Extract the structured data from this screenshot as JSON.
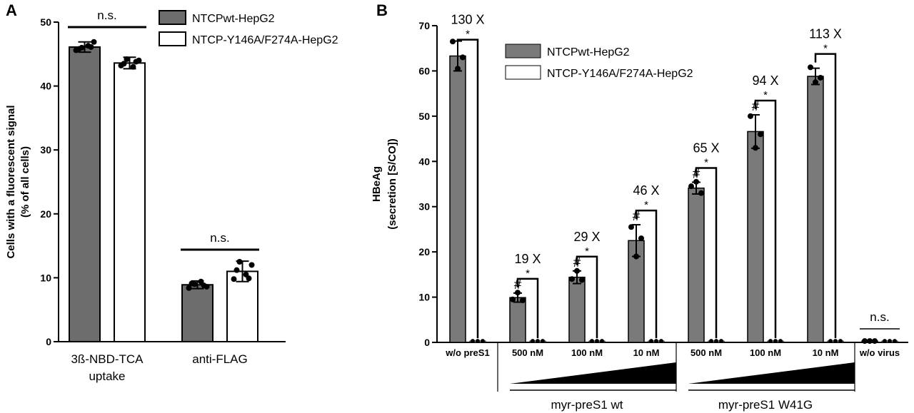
{
  "chart_data": [
    {
      "type": "bar",
      "panel_label": "A",
      "ylabel_line1": "Cells with a fluorescent signal",
      "ylabel_line2": "(% of all cells)",
      "ylim": [
        0,
        50
      ],
      "yticks": [
        0,
        10,
        20,
        30,
        40,
        50
      ],
      "categories": [
        [
          "3ß-NBD-TCA",
          "uptake"
        ],
        [
          "anti-FLAG"
        ]
      ],
      "legend": {
        "position": "top-right",
        "entries": [
          "NTCPwt-HepG2",
          "NTCP-Y146A/F274A-HepG2"
        ]
      },
      "series": [
        {
          "name": "NTCPwt-HepG2",
          "color": "#6d6d6d",
          "values": [
            46.1,
            8.9
          ],
          "errors": [
            0.8,
            0.6
          ],
          "points": [
            [
              45.6,
              46.0,
              46.3,
              46.9,
              45.8,
              46.1
            ],
            [
              8.4,
              9.0,
              9.4,
              8.6,
              9.1,
              8.8
            ]
          ]
        },
        {
          "name": "NTCP-Y146A/F274A-HepG2",
          "color": "#ffffff",
          "values": [
            43.6,
            11.0
          ],
          "errors": [
            0.9,
            1.6
          ],
          "points": [
            [
              43.2,
              44.2,
              43.0,
              44.0,
              43.5,
              43.8
            ],
            [
              9.8,
              12.5,
              10.5,
              12.0,
              11.2,
              9.9
            ]
          ]
        }
      ],
      "annotations": [
        "n.s.",
        "n.s."
      ]
    },
    {
      "type": "bar",
      "panel_label": "B",
      "ylabel_line1": "HBeAg",
      "ylabel_line2": "(secretion [S/CO])",
      "ylim": [
        0,
        70
      ],
      "yticks": [
        0,
        10,
        20,
        30,
        40,
        50,
        60,
        70
      ],
      "categories": [
        "w/o preS1",
        "500 nM",
        "100 nM",
        "10 nM",
        "500 nM",
        "100 nM",
        "10 nM",
        "w/o virus"
      ],
      "legend": {
        "position": "top-center",
        "entries": [
          "NTCPwt-HepG2",
          "NTCP-Y146A/F274A-HepG2"
        ]
      },
      "series": [
        {
          "name": "NTCPwt-HepG2",
          "color": "#7a7a7a",
          "values": [
            63.3,
            9.9,
            14.4,
            22.5,
            34.1,
            46.6,
            58.8,
            0.3
          ],
          "errors": [
            3.3,
            1.0,
            1.4,
            3.5,
            1.3,
            3.7,
            1.8,
            0.1
          ],
          "points": [
            [
              66.5,
              60.5,
              63.0
            ],
            [
              9.5,
              11.0,
              9.3
            ],
            [
              14.0,
              15.8,
              13.8
            ],
            [
              25.5,
              19.0,
              23.0
            ],
            [
              34.5,
              35.5,
              33.0
            ],
            [
              50.0,
              43.0,
              46.0
            ],
            [
              60.8,
              57.5,
              58.5
            ],
            [
              0.3,
              0.3,
              0.3
            ]
          ]
        },
        {
          "name": "NTCP-Y146A/F274A-HepG2",
          "color": "#ffffff",
          "values": [
            0.3,
            0.3,
            0.3,
            0.3,
            0.3,
            0.3,
            0.3,
            0.3
          ],
          "errors": [
            0,
            0,
            0,
            0,
            0,
            0,
            0,
            0
          ],
          "points": [
            [
              0.3,
              0.3,
              0.3
            ],
            [
              0.3,
              0.3,
              0.3
            ],
            [
              0.3,
              0.3,
              0.3
            ],
            [
              0.3,
              0.3,
              0.3
            ],
            [
              0.3,
              0.3,
              0.3
            ],
            [
              0.3,
              0.3,
              0.3
            ],
            [
              0.3,
              0.3,
              0.3
            ],
            [
              0.3,
              0.3,
              0.3
            ]
          ]
        }
      ],
      "fold_annotations": [
        "130 X",
        "19 X",
        "29 X",
        "46 X",
        "65 X",
        "94 X",
        "113 X",
        "n.s."
      ],
      "star_label": "*",
      "hash_label": "#",
      "hash_groups": [
        1,
        2,
        3,
        4,
        5
      ],
      "group_labels": [
        "myr-preS1 wt",
        "myr-preS1 W41G"
      ]
    }
  ]
}
